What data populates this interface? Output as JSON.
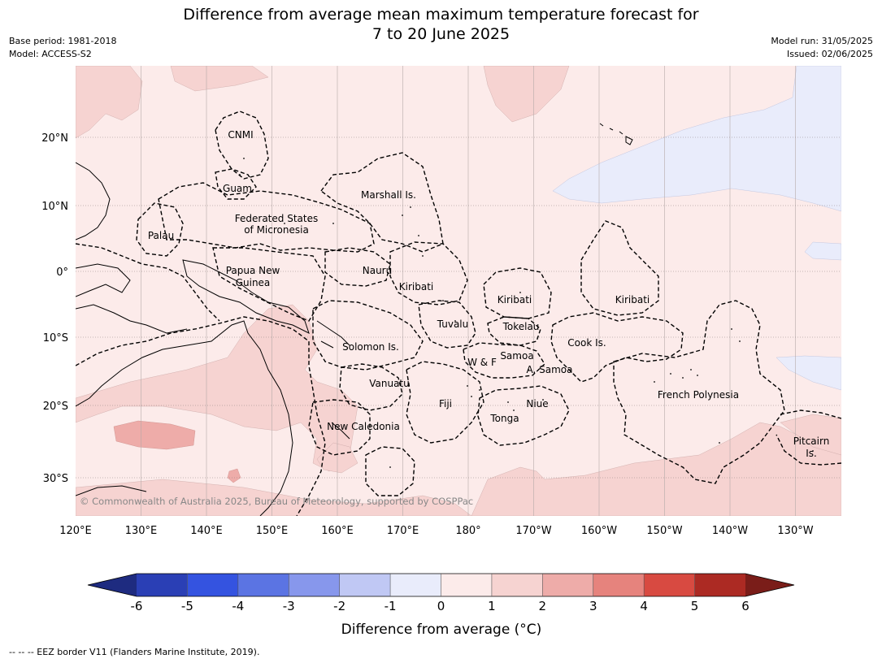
{
  "header": {
    "title_line1": "Difference from average mean maximum temperature forecast for",
    "title_line2": "7 to 20 June 2025",
    "base_period": "Base period: 1981-2018",
    "model": "Model: ACCESS-S2",
    "model_run": "Model run: 31/05/2025",
    "issued": "Issued: 02/06/2025"
  },
  "map": {
    "lon_ticks": [
      "120°E",
      "130°E",
      "140°E",
      "150°E",
      "160°E",
      "170°E",
      "180°",
      "170°W",
      "160°W",
      "150°W",
      "140°W",
      "130°W"
    ],
    "lat_ticks": [
      "20°N",
      "10°N",
      "0°",
      "10°S",
      "20°S",
      "30°S"
    ],
    "regions": [
      {
        "name": "CNMI"
      },
      {
        "name": "Guam"
      },
      {
        "name": "Marshall Is."
      },
      {
        "name": "Federated States",
        "name2": "of Micronesia"
      },
      {
        "name": "Palau"
      },
      {
        "name": "Papua New",
        "name2": "Guinea"
      },
      {
        "name": "Nauru"
      },
      {
        "name": "Kiribati"
      },
      {
        "name": "Kiribati"
      },
      {
        "name": "Kiribati"
      },
      {
        "name": "Tuvalu"
      },
      {
        "name": "Tokelau"
      },
      {
        "name": "Cook Is."
      },
      {
        "name": "Solomon Is."
      },
      {
        "name": "Samoa"
      },
      {
        "name": "W & F"
      },
      {
        "name": "A. Samoa"
      },
      {
        "name": "Vanuatu"
      },
      {
        "name": "Fiji"
      },
      {
        "name": "Niue"
      },
      {
        "name": "French Polynesia"
      },
      {
        "name": "Tonga"
      },
      {
        "name": "New Caledonia"
      },
      {
        "name": "Pitcairn",
        "name2": "Is."
      }
    ],
    "copyright": "© Commonwealth of Australia 2025, Bureau of Meteorology, supported by COSPPac"
  },
  "colorbar": {
    "ticks": [
      "-6",
      "-5",
      "-4",
      "-3",
      "-2",
      "-1",
      "0",
      "1",
      "2",
      "3",
      "4",
      "5",
      "6"
    ],
    "colors": [
      "#2a3fb5",
      "#3453e0",
      "#5b74e3",
      "#8797ec",
      "#c0c8f4",
      "#e9ecfb",
      "#fcebea",
      "#f6d3d1",
      "#eeaca9",
      "#e6837d",
      "#d84a41",
      "#ac2a23"
    ],
    "low_extend_color": "#1e2b80",
    "high_extend_color": "#7a1d19",
    "label": "Difference from average (°C)"
  },
  "footer": {
    "text": "--  --  -- EEZ border V11 (Flanders Marine Institute, 2019)."
  }
}
